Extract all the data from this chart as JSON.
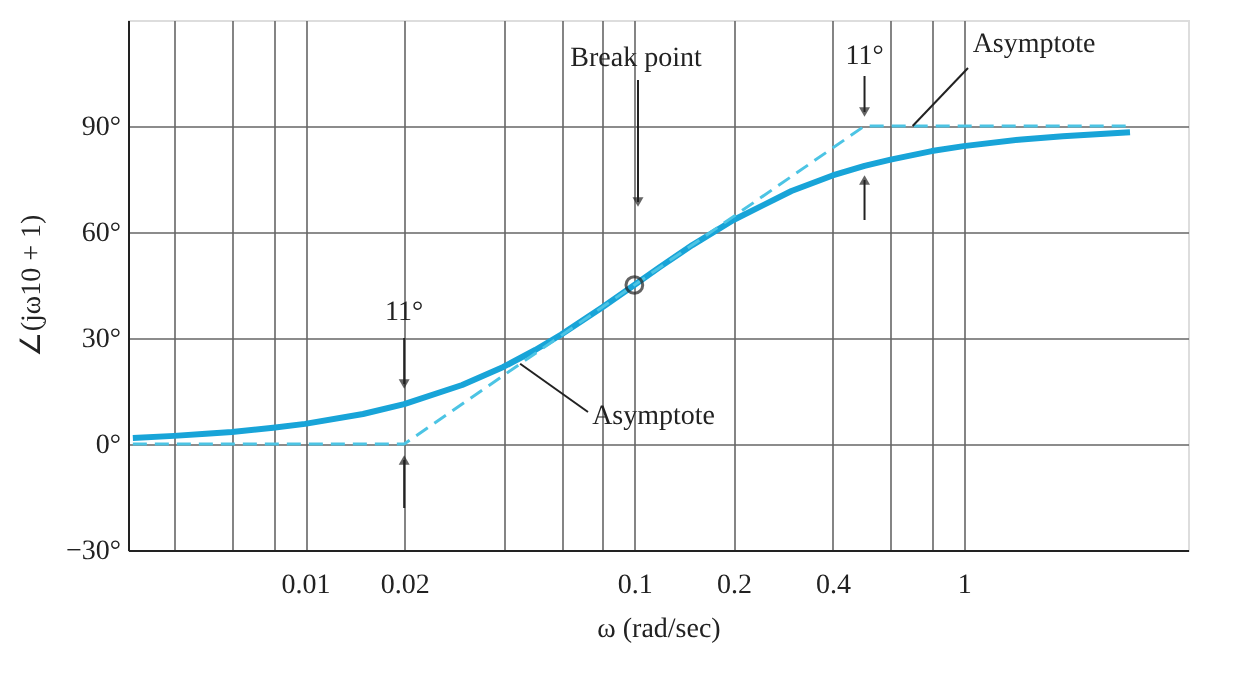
{
  "chart_data": {
    "type": "line",
    "xlabel": "ω (rad/sec)",
    "ylabel": "∠(jω10 + 1)",
    "xlim": [
      0.0029,
      4.8
    ],
    "ylim": [
      -30,
      120
    ],
    "xticks": [
      {
        "value": 0.004,
        "label": null
      },
      {
        "value": 0.006,
        "label": null
      },
      {
        "value": 0.008,
        "label": null
      },
      0.01,
      0.02,
      {
        "value": 0.04,
        "label": null
      },
      {
        "value": 0.06,
        "label": null
      },
      {
        "value": 0.08,
        "label": null
      },
      0.1,
      0.2,
      0.4,
      {
        "value": 0.6,
        "label": null
      },
      {
        "value": 0.8,
        "label": null
      },
      1
    ],
    "yticks": [
      {
        "value": -30,
        "label": "−30°"
      },
      {
        "value": 0,
        "label": "0°"
      },
      {
        "value": 30,
        "label": "30°"
      },
      {
        "value": 60,
        "label": "60°"
      },
      {
        "value": 90,
        "label": "90°"
      }
    ],
    "grid": true,
    "log": "x",
    "series": [
      {
        "color": "#18a4d8",
        "line_style": "solid",
        "x": [
          0.003,
          0.004,
          0.005,
          0.006,
          0.008,
          0.01,
          0.015,
          0.02,
          0.03,
          0.04,
          0.05,
          0.06,
          0.08,
          0.1,
          0.12,
          0.15,
          0.2,
          0.3,
          0.4,
          0.5,
          0.6,
          0.8,
          1,
          1.5,
          2,
          3.2
        ],
        "values": [
          1.7,
          2.3,
          2.9,
          3.4,
          4.6,
          5.7,
          8.5,
          11.3,
          16.7,
          21.8,
          26.6,
          31.0,
          38.7,
          45.0,
          50.2,
          56.3,
          63.4,
          71.6,
          76.0,
          78.7,
          80.5,
          82.9,
          84.3,
          86.2,
          87.1,
          88.2
        ]
      },
      {
        "color": "#4cc4e4",
        "line_style": "dashed",
        "x": [
          0.003,
          0.02,
          0.5,
          3.2
        ],
        "values": [
          0,
          0,
          90,
          90
        ]
      },
      {
        "type": "scatter",
        "color": "#222222",
        "marker": "circle",
        "x": [
          0.1
        ],
        "values": [
          45
        ]
      }
    ],
    "annotations": [
      "Break point",
      {
        "text": "11°",
        "x": 0.02,
        "y": 11.3
      },
      {
        "text": "11°",
        "x": 0.5,
        "y": 90
      },
      {
        "text": "Asymptote",
        "x": 0.045,
        "y": 22.7
      },
      {
        "text": "Asymptote",
        "x": 0.7,
        "y": 90
      }
    ]
  }
}
